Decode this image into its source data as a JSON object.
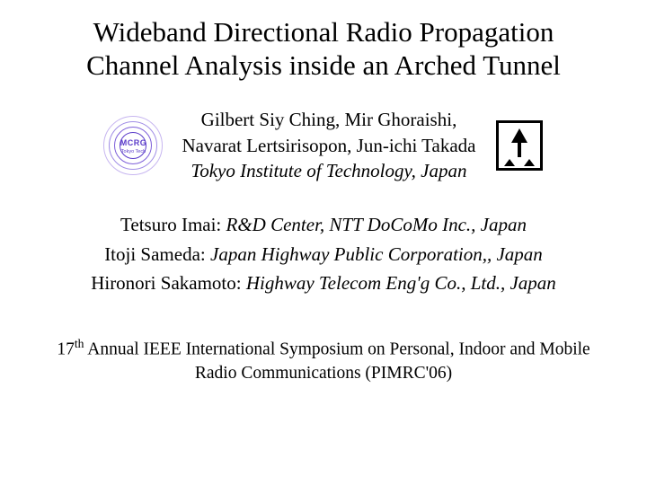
{
  "colors": {
    "bg": "#ffffff",
    "text": "#000000",
    "ring1": "#c7b6f0",
    "ring2": "#a28fe6",
    "ring3": "#7d5fd9",
    "ring4": "#5a3bc9",
    "mcrg_text": "#5a3bc9",
    "logo_black": "#000000"
  },
  "title": {
    "line1": "Wideband Directional Radio Propagation",
    "line2": "Channel Analysis inside an Arched Tunnel"
  },
  "authors": {
    "line1": "Gilbert Siy Ching, Mir Ghoraishi,",
    "line2": "Navarat Lertsirisopon, Jun-ichi Takada",
    "line3_italic": "Tokyo Institute of Technology, Japan"
  },
  "affiliations": {
    "a1_name": "Tetsuro Imai: ",
    "a1_place": "R&D Center, NTT DoCoMo Inc., Japan",
    "a2_name": "Itoji Sameda: ",
    "a2_place": "Japan Highway Public Corporation,, Japan",
    "a3_name": "Hironori Sakamoto: ",
    "a3_place": "Highway Telecom Eng'g Co., Ltd., Japan"
  },
  "conference": {
    "ord_num": "17",
    "ord_sup": "th",
    "rest1": " Annual IEEE International Symposium on Personal, Indoor and Mobile",
    "line2": "Radio Communications (PIMRC'06)"
  },
  "logo_left": {
    "text": "MCRG",
    "sub": "Tokyo Tech",
    "rings": [
      {
        "size": 64,
        "colorkey": "ring1"
      },
      {
        "size": 52,
        "colorkey": "ring2"
      },
      {
        "size": 40,
        "colorkey": "ring3"
      },
      {
        "size": 28,
        "colorkey": "ring4"
      }
    ]
  }
}
